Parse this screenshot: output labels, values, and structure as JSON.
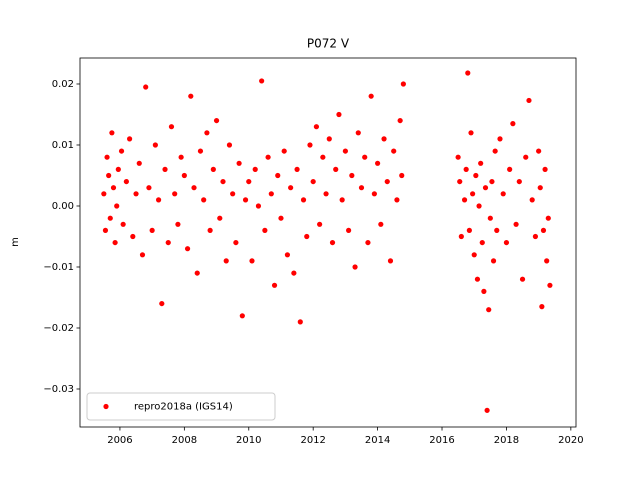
{
  "chart_data": {
    "type": "scatter",
    "title": "P072 V",
    "ylabel": "m",
    "x": [
      2005.5,
      2005.55,
      2005.6,
      2005.65,
      2005.7,
      2005.75,
      2005.8,
      2005.85,
      2005.9,
      2005.95,
      2006.05,
      2006.1,
      2006.2,
      2006.3,
      2006.4,
      2006.5,
      2006.6,
      2006.7,
      2006.8,
      2006.9,
      2007.0,
      2007.1,
      2007.2,
      2007.3,
      2007.4,
      2007.5,
      2007.6,
      2007.7,
      2007.8,
      2007.9,
      2008.0,
      2008.1,
      2008.2,
      2008.3,
      2008.4,
      2008.5,
      2008.6,
      2008.7,
      2008.8,
      2008.9,
      2009.0,
      2009.1,
      2009.2,
      2009.3,
      2009.4,
      2009.5,
      2009.6,
      2009.7,
      2009.8,
      2009.9,
      2010.0,
      2010.1,
      2010.2,
      2010.3,
      2010.4,
      2010.5,
      2010.6,
      2010.7,
      2010.8,
      2010.9,
      2011.0,
      2011.1,
      2011.2,
      2011.3,
      2011.4,
      2011.5,
      2011.6,
      2011.7,
      2011.8,
      2011.9,
      2012.0,
      2012.1,
      2012.2,
      2012.3,
      2012.4,
      2012.5,
      2012.6,
      2012.7,
      2012.8,
      2012.9,
      2013.0,
      2013.1,
      2013.2,
      2013.3,
      2013.4,
      2013.5,
      2013.6,
      2013.7,
      2013.8,
      2013.9,
      2014.0,
      2014.1,
      2014.2,
      2014.3,
      2014.4,
      2014.5,
      2014.6,
      2014.7,
      2014.75,
      2014.8,
      2016.5,
      2016.55,
      2016.6,
      2016.7,
      2016.75,
      2016.8,
      2016.85,
      2016.9,
      2016.95,
      2017.0,
      2017.05,
      2017.1,
      2017.15,
      2017.2,
      2017.25,
      2017.3,
      2017.35,
      2017.4,
      2017.45,
      2017.5,
      2017.55,
      2017.6,
      2017.65,
      2017.7,
      2017.8,
      2017.9,
      2018.0,
      2018.1,
      2018.2,
      2018.3,
      2018.4,
      2018.5,
      2018.6,
      2018.7,
      2018.8,
      2018.9,
      2019.0,
      2019.05,
      2019.1,
      2019.15,
      2019.2,
      2019.25,
      2019.3,
      2019.35
    ],
    "series": [
      {
        "name": "repro2018a (IGS14)",
        "color": "#ff0000",
        "values": [
          0.002,
          -0.004,
          0.008,
          0.005,
          -0.002,
          0.012,
          0.003,
          -0.006,
          0.0,
          0.006,
          0.009,
          -0.003,
          0.004,
          0.011,
          -0.005,
          0.002,
          0.007,
          -0.008,
          0.0195,
          0.003,
          -0.004,
          0.01,
          0.001,
          -0.016,
          0.006,
          -0.006,
          0.013,
          0.002,
          -0.003,
          0.008,
          0.005,
          -0.007,
          0.018,
          0.003,
          -0.011,
          0.009,
          0.001,
          0.012,
          -0.004,
          0.006,
          0.014,
          -0.002,
          0.004,
          -0.009,
          0.01,
          0.002,
          -0.006,
          0.007,
          -0.018,
          0.001,
          0.004,
          -0.009,
          0.006,
          0.0,
          0.0205,
          -0.004,
          0.008,
          0.002,
          -0.013,
          0.005,
          -0.002,
          0.009,
          -0.008,
          0.003,
          -0.011,
          0.006,
          -0.019,
          0.001,
          -0.005,
          0.01,
          0.004,
          0.013,
          -0.003,
          0.008,
          0.002,
          0.011,
          -0.006,
          0.006,
          0.015,
          0.001,
          0.009,
          -0.004,
          0.005,
          -0.01,
          0.012,
          0.003,
          0.008,
          -0.006,
          0.018,
          0.002,
          0.007,
          -0.003,
          0.011,
          0.004,
          -0.009,
          0.009,
          0.001,
          0.014,
          0.005,
          0.02,
          0.008,
          0.004,
          -0.005,
          0.001,
          0.006,
          0.0218,
          -0.004,
          0.012,
          0.002,
          -0.008,
          0.005,
          -0.012,
          0.0,
          0.007,
          -0.006,
          -0.014,
          0.003,
          -0.0335,
          -0.017,
          -0.002,
          0.004,
          -0.009,
          0.009,
          -0.004,
          0.011,
          0.002,
          -0.006,
          0.006,
          0.0135,
          -0.003,
          0.004,
          -0.012,
          0.008,
          0.0173,
          0.001,
          -0.005,
          0.009,
          0.003,
          -0.0165,
          -0.004,
          0.006,
          -0.009,
          -0.002,
          -0.013
        ]
      }
    ],
    "xlim": [
      2004.76,
      2020.16
    ],
    "ylim": [
      -0.03623,
      0.02426
    ],
    "xticks": [
      2006,
      2008,
      2010,
      2012,
      2014,
      2016,
      2018,
      2020
    ],
    "yticks": [
      {
        "value": -0.03,
        "label": "−0.03"
      },
      {
        "value": -0.02,
        "label": "−0.02"
      },
      {
        "value": -0.01,
        "label": "−0.01"
      },
      {
        "value": 0,
        "label": "0.00"
      },
      0.01,
      0.02
    ],
    "legend": "lower left"
  }
}
